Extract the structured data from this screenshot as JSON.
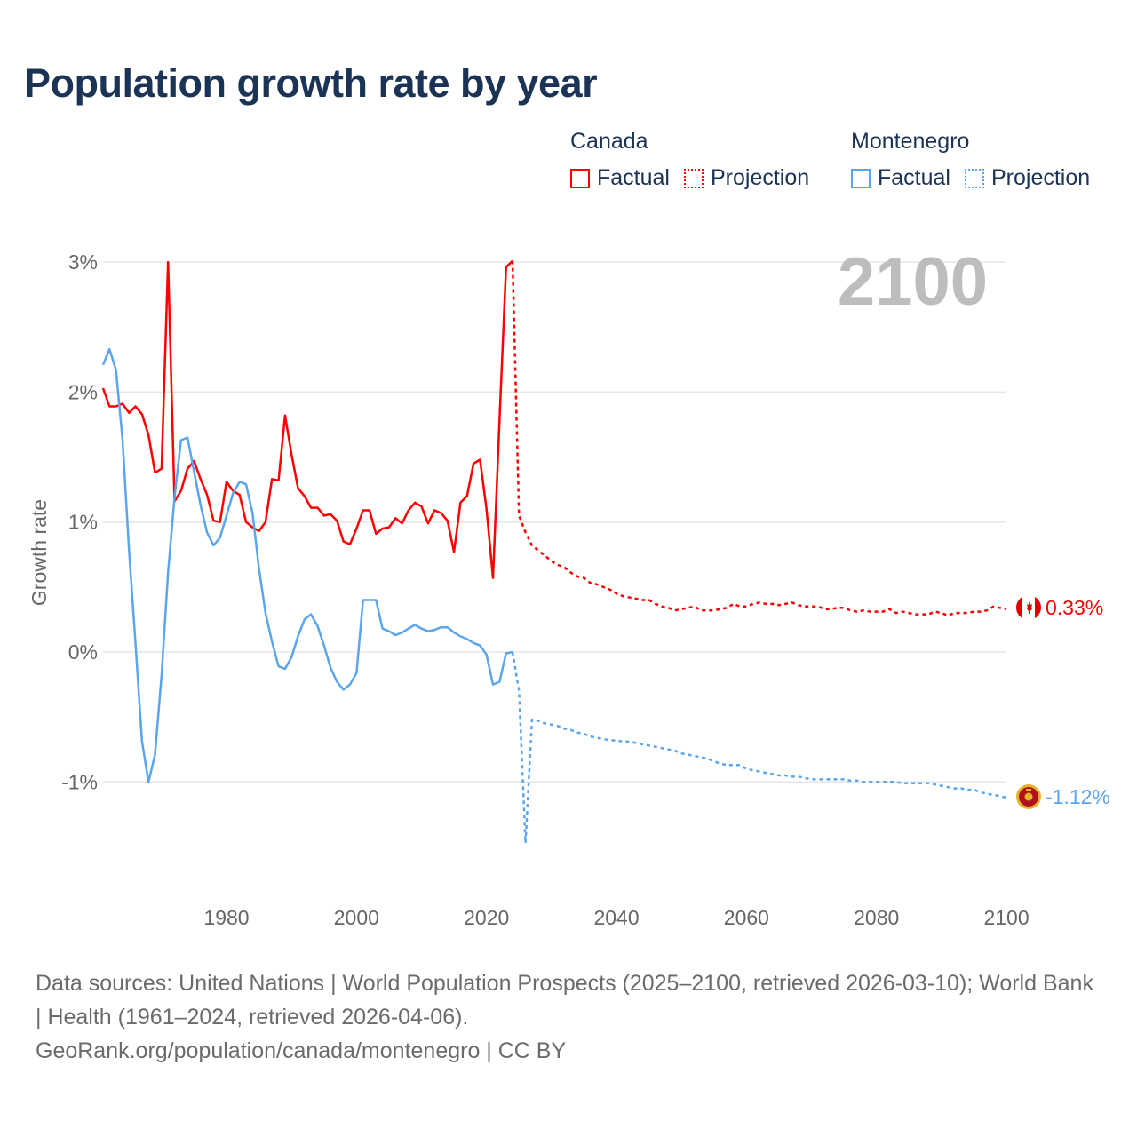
{
  "title": "Population growth rate by year",
  "legend": {
    "groups": [
      {
        "name": "Canada",
        "factual": "Factual",
        "projection": "Projection",
        "color": "#ff0000"
      },
      {
        "name": "Montenegro",
        "factual": "Factual",
        "projection": "Projection",
        "color": "#5aa5ec"
      }
    ]
  },
  "year_label": "2100",
  "end_labels": {
    "canada": "0.33%",
    "montenegro": "-1.12%"
  },
  "footer": {
    "sources": "Data sources: United Nations | World Population Prospects (2025–2100, retrieved 2026-03-10); World Bank | Health (1961–2024, retrieved 2026-04-06).",
    "link": "GeoRank.org/population/canada/montenegro | CC BY"
  },
  "chart_data": {
    "type": "line",
    "title": "Population growth rate by year",
    "xlabel": "",
    "ylabel": "Growth rate",
    "xlim": [
      1961,
      2100
    ],
    "ylim": [
      -1.75,
      3.4
    ],
    "x_ticks": [
      1980,
      2000,
      2020,
      2040,
      2060,
      2080,
      2100
    ],
    "x_tick_labels": [
      "1980",
      "2000",
      "2020",
      "2040",
      "2060",
      "2080",
      "2100"
    ],
    "y_ticks": [
      3,
      2,
      1,
      0,
      -1
    ],
    "y_tick_labels": [
      "3%",
      "2%",
      "1%",
      "0%",
      "-1%"
    ],
    "grid": true,
    "legend_position": "top-right",
    "series": [
      {
        "name": "Canada Factual",
        "country": "Canada",
        "kind": "factual",
        "color": "#ff0000",
        "start_year": 1961,
        "values": [
          2.03,
          1.89,
          1.89,
          1.91,
          1.84,
          1.89,
          1.83,
          1.67,
          1.38,
          1.41,
          3.0,
          1.16,
          1.24,
          1.41,
          1.47,
          1.33,
          1.21,
          1.01,
          1.0,
          1.31,
          1.24,
          1.21,
          1.0,
          0.96,
          0.93,
          1.0,
          1.33,
          1.32,
          1.82,
          1.52,
          1.26,
          1.2,
          1.11,
          1.11,
          1.05,
          1.06,
          1.01,
          0.85,
          0.83,
          0.95,
          1.09,
          1.09,
          0.91,
          0.95,
          0.96,
          1.03,
          0.99,
          1.09,
          1.15,
          1.12,
          0.99,
          1.09,
          1.07,
          1.01,
          0.77,
          1.15,
          1.2,
          1.45,
          1.48,
          1.1,
          0.57,
          1.78,
          2.96,
          3.01
        ]
      },
      {
        "name": "Canada Projection",
        "country": "Canada",
        "kind": "projection",
        "color": "#ff0000",
        "start_year": 2024,
        "values": [
          3.01,
          1.05,
          0.92,
          0.82,
          0.78,
          0.74,
          0.7,
          0.67,
          0.65,
          0.61,
          0.58,
          0.57,
          0.53,
          0.52,
          0.5,
          0.48,
          0.45,
          0.43,
          0.42,
          0.41,
          0.4,
          0.4,
          0.37,
          0.35,
          0.34,
          0.32,
          0.33,
          0.34,
          0.35,
          0.32,
          0.32,
          0.32,
          0.33,
          0.34,
          0.37,
          0.35,
          0.35,
          0.37,
          0.38,
          0.37,
          0.37,
          0.36,
          0.37,
          0.38,
          0.36,
          0.35,
          0.35,
          0.35,
          0.33,
          0.33,
          0.34,
          0.34,
          0.32,
          0.31,
          0.32,
          0.31,
          0.31,
          0.31,
          0.33,
          0.3,
          0.31,
          0.3,
          0.29,
          0.29,
          0.29,
          0.31,
          0.3,
          0.28,
          0.3,
          0.3,
          0.3,
          0.31,
          0.31,
          0.32,
          0.35,
          0.34,
          0.33
        ]
      },
      {
        "name": "Montenegro Factual",
        "country": "Montenegro",
        "kind": "factual",
        "color": "#5aa5ec",
        "start_year": 1961,
        "values": [
          2.21,
          2.33,
          2.17,
          1.63,
          0.78,
          0.06,
          -0.69,
          -1.0,
          -0.79,
          -0.18,
          0.61,
          1.19,
          1.63,
          1.65,
          1.39,
          1.13,
          0.92,
          0.82,
          0.88,
          1.05,
          1.22,
          1.31,
          1.29,
          1.07,
          0.64,
          0.3,
          0.08,
          -0.11,
          -0.13,
          -0.04,
          0.12,
          0.25,
          0.29,
          0.2,
          0.05,
          -0.12,
          -0.23,
          -0.29,
          -0.25,
          -0.16,
          0.4,
          0.4,
          0.4,
          0.18,
          0.16,
          0.13,
          0.15,
          0.18,
          0.21,
          0.18,
          0.16,
          0.17,
          0.19,
          0.19,
          0.15,
          0.12,
          0.1,
          0.07,
          0.05,
          -0.02,
          -0.25,
          -0.23,
          -0.01,
          0.0
        ]
      },
      {
        "name": "Montenegro Projection",
        "country": "Montenegro",
        "kind": "projection",
        "color": "#5aa5ec",
        "start_year": 2024,
        "values": [
          0.0,
          -0.3,
          -1.47,
          -0.52,
          -0.53,
          -0.55,
          -0.56,
          -0.57,
          -0.59,
          -0.6,
          -0.62,
          -0.63,
          -0.65,
          -0.66,
          -0.67,
          -0.68,
          -0.68,
          -0.69,
          -0.69,
          -0.7,
          -0.71,
          -0.72,
          -0.73,
          -0.74,
          -0.75,
          -0.76,
          -0.78,
          -0.79,
          -0.8,
          -0.81,
          -0.82,
          -0.84,
          -0.86,
          -0.87,
          -0.87,
          -0.87,
          -0.9,
          -0.91,
          -0.92,
          -0.93,
          -0.94,
          -0.95,
          -0.95,
          -0.96,
          -0.96,
          -0.97,
          -0.98,
          -0.98,
          -0.98,
          -0.98,
          -0.98,
          -0.98,
          -0.99,
          -0.99,
          -1.0,
          -1.0,
          -1.0,
          -1.0,
          -1.0,
          -1.0,
          -1.01,
          -1.01,
          -1.01,
          -1.01,
          -1.01,
          -1.02,
          -1.03,
          -1.04,
          -1.05,
          -1.05,
          -1.06,
          -1.06,
          -1.08,
          -1.09,
          -1.1,
          -1.11,
          -1.12
        ]
      }
    ]
  }
}
